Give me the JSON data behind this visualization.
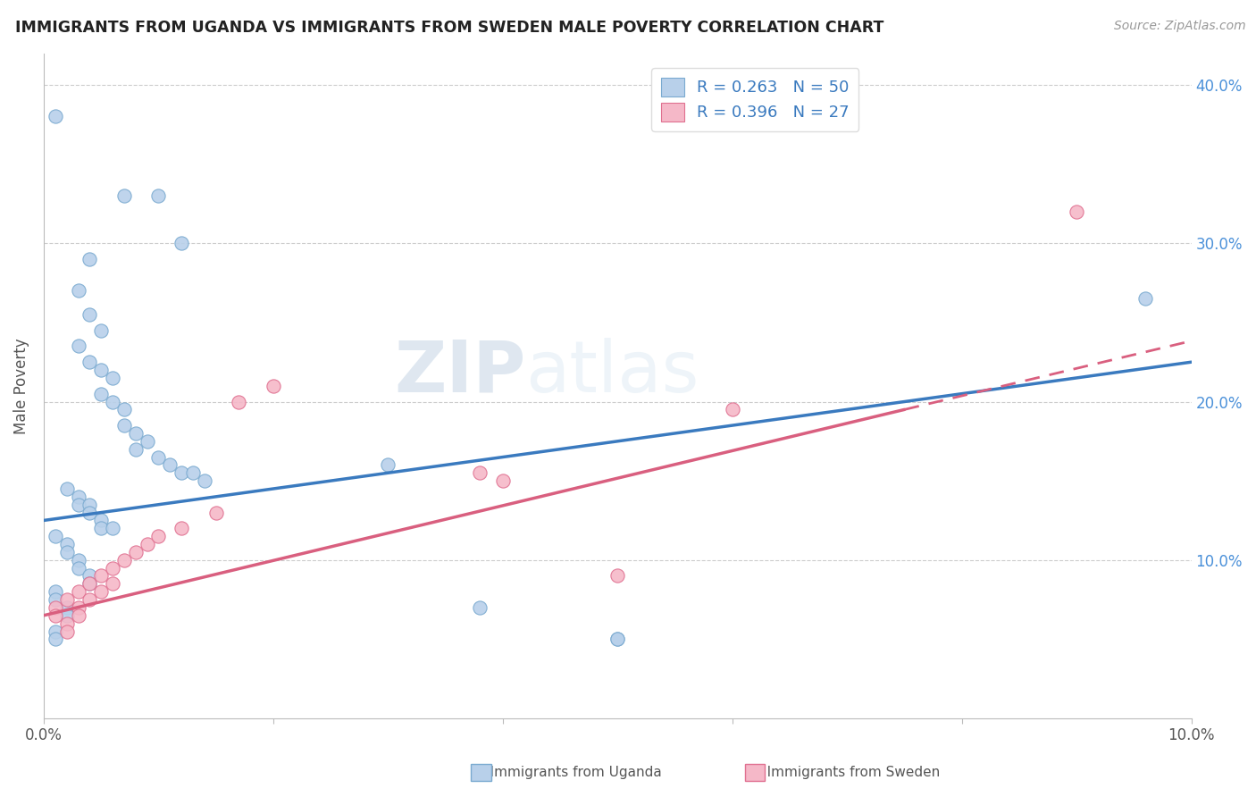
{
  "title": "IMMIGRANTS FROM UGANDA VS IMMIGRANTS FROM SWEDEN MALE POVERTY CORRELATION CHART",
  "source": "Source: ZipAtlas.com",
  "ylabel": "Male Poverty",
  "xlim": [
    0.0,
    0.1
  ],
  "ylim": [
    0.0,
    0.42
  ],
  "ytick_positions": [
    0.1,
    0.2,
    0.3,
    0.4
  ],
  "ytick_labels": [
    "10.0%",
    "20.0%",
    "30.0%",
    "40.0%"
  ],
  "uganda_R": 0.263,
  "uganda_N": 50,
  "sweden_R": 0.396,
  "sweden_N": 27,
  "uganda_color": "#b8d0ea",
  "sweden_color": "#f5b8c8",
  "uganda_line_color": "#3a7abf",
  "sweden_line_color": "#d95f7f",
  "uganda_edge_color": "#7aaad0",
  "sweden_edge_color": "#e07090",
  "watermark_zip": "ZIP",
  "watermark_atlas": "atlas",
  "uganda_points": [
    [
      0.001,
      0.38
    ],
    [
      0.007,
      0.33
    ],
    [
      0.01,
      0.33
    ],
    [
      0.012,
      0.3
    ],
    [
      0.004,
      0.29
    ],
    [
      0.003,
      0.27
    ],
    [
      0.004,
      0.255
    ],
    [
      0.005,
      0.245
    ],
    [
      0.003,
      0.235
    ],
    [
      0.004,
      0.225
    ],
    [
      0.005,
      0.22
    ],
    [
      0.006,
      0.215
    ],
    [
      0.005,
      0.205
    ],
    [
      0.006,
      0.2
    ],
    [
      0.007,
      0.195
    ],
    [
      0.007,
      0.185
    ],
    [
      0.008,
      0.18
    ],
    [
      0.009,
      0.175
    ],
    [
      0.008,
      0.17
    ],
    [
      0.01,
      0.165
    ],
    [
      0.011,
      0.16
    ],
    [
      0.012,
      0.155
    ],
    [
      0.013,
      0.155
    ],
    [
      0.014,
      0.15
    ],
    [
      0.002,
      0.145
    ],
    [
      0.003,
      0.14
    ],
    [
      0.003,
      0.135
    ],
    [
      0.004,
      0.135
    ],
    [
      0.004,
      0.13
    ],
    [
      0.005,
      0.125
    ],
    [
      0.005,
      0.12
    ],
    [
      0.006,
      0.12
    ],
    [
      0.001,
      0.115
    ],
    [
      0.002,
      0.11
    ],
    [
      0.002,
      0.105
    ],
    [
      0.003,
      0.1
    ],
    [
      0.003,
      0.095
    ],
    [
      0.004,
      0.09
    ],
    [
      0.004,
      0.085
    ],
    [
      0.001,
      0.08
    ],
    [
      0.001,
      0.075
    ],
    [
      0.002,
      0.07
    ],
    [
      0.002,
      0.065
    ],
    [
      0.001,
      0.055
    ],
    [
      0.001,
      0.05
    ],
    [
      0.03,
      0.16
    ],
    [
      0.038,
      0.07
    ],
    [
      0.05,
      0.05
    ],
    [
      0.096,
      0.265
    ],
    [
      0.05,
      0.05
    ]
  ],
  "sweden_points": [
    [
      0.001,
      0.07
    ],
    [
      0.001,
      0.065
    ],
    [
      0.002,
      0.075
    ],
    [
      0.002,
      0.06
    ],
    [
      0.002,
      0.055
    ],
    [
      0.003,
      0.08
    ],
    [
      0.003,
      0.07
    ],
    [
      0.003,
      0.065
    ],
    [
      0.004,
      0.085
    ],
    [
      0.004,
      0.075
    ],
    [
      0.005,
      0.09
    ],
    [
      0.005,
      0.08
    ],
    [
      0.006,
      0.095
    ],
    [
      0.006,
      0.085
    ],
    [
      0.007,
      0.1
    ],
    [
      0.008,
      0.105
    ],
    [
      0.009,
      0.11
    ],
    [
      0.01,
      0.115
    ],
    [
      0.012,
      0.12
    ],
    [
      0.015,
      0.13
    ],
    [
      0.017,
      0.2
    ],
    [
      0.02,
      0.21
    ],
    [
      0.038,
      0.155
    ],
    [
      0.04,
      0.15
    ],
    [
      0.05,
      0.09
    ],
    [
      0.06,
      0.195
    ],
    [
      0.09,
      0.32
    ]
  ],
  "uganda_line": {
    "x0": 0.0,
    "y0": 0.125,
    "x1": 0.1,
    "y1": 0.225
  },
  "sweden_line": {
    "x0": 0.0,
    "y0": 0.065,
    "x1": 0.075,
    "y1": 0.195
  }
}
